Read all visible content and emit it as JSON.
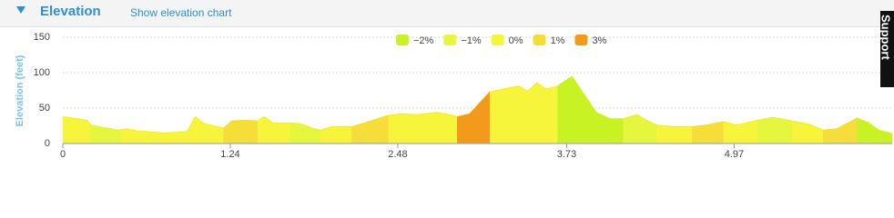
{
  "header": {
    "title": "Elevation",
    "toggle": "Show elevation chart"
  },
  "support": "Support",
  "chart_data": {
    "type": "area",
    "y_label": "Elevation (feet)",
    "xlim": [
      0,
      6.14
    ],
    "ylim": [
      0,
      150
    ],
    "xticks": [
      0,
      1.24,
      2.48,
      3.73,
      4.97
    ],
    "yticks": [
      0,
      50,
      100,
      150
    ],
    "grid": true,
    "x": [
      0,
      0.18,
      0.21,
      0.41,
      0.47,
      0.55,
      0.75,
      0.92,
      0.98,
      1.05,
      1.19,
      1.25,
      1.35,
      1.44,
      1.49,
      1.56,
      1.68,
      1.76,
      1.86,
      1.91,
      1.99,
      2.14,
      2.23,
      2.41,
      2.5,
      2.63,
      2.77,
      2.84,
      2.92,
      3.01,
      3.16,
      3.31,
      3.38,
      3.44,
      3.51,
      3.58,
      3.66,
      3.77,
      3.85,
      3.95,
      4.05,
      4.15,
      4.25,
      4.32,
      4.4,
      4.52,
      4.66,
      4.76,
      4.89,
      4.99,
      5.14,
      5.26,
      5.4,
      5.53,
      5.63,
      5.73,
      5.88,
      5.97,
      6.04,
      6.14
    ],
    "values": [
      38,
      33,
      26,
      19,
      21,
      18,
      15,
      17,
      38,
      28,
      22,
      32,
      33,
      32,
      38,
      29,
      29,
      28,
      21,
      19,
      24,
      24,
      29,
      40,
      42,
      41,
      44,
      42,
      38,
      42,
      73,
      79,
      81,
      74,
      86,
      77,
      81,
      95,
      72,
      44,
      35,
      35,
      41,
      33,
      26,
      24,
      24,
      26,
      31,
      26,
      33,
      37,
      32,
      27,
      19,
      21,
      36,
      29,
      19,
      14
    ],
    "series": [
      {
        "name": "−2%",
        "color": "#c9f224",
        "ranges": [
          [
            3.66,
            4.15
          ],
          [
            5.88,
            6.14
          ]
        ]
      },
      {
        "name": "−1%",
        "color": "#e6f53d",
        "ranges": [
          [
            0.2,
            0.43
          ],
          [
            1.68,
            1.91
          ],
          [
            4.15,
            4.4
          ],
          [
            5.14,
            5.4
          ]
        ]
      },
      {
        "name": "0%",
        "color": "#f7f43c",
        "ranges": [
          [
            0,
            0.2
          ],
          [
            0.43,
            1.19
          ],
          [
            1.44,
            1.68
          ],
          [
            1.91,
            2.14
          ],
          [
            2.41,
            2.92
          ],
          [
            3.16,
            3.66
          ],
          [
            4.4,
            4.66
          ],
          [
            4.89,
            5.14
          ],
          [
            5.4,
            5.63
          ]
        ]
      },
      {
        "name": "1%",
        "color": "#f6de3a",
        "ranges": [
          [
            1.19,
            1.44
          ],
          [
            2.14,
            2.41
          ],
          [
            4.66,
            4.89
          ],
          [
            5.63,
            5.88
          ]
        ]
      },
      {
        "name": "3%",
        "color": "#f39a1c",
        "ranges": [
          [
            2.92,
            3.16
          ]
        ]
      }
    ]
  }
}
